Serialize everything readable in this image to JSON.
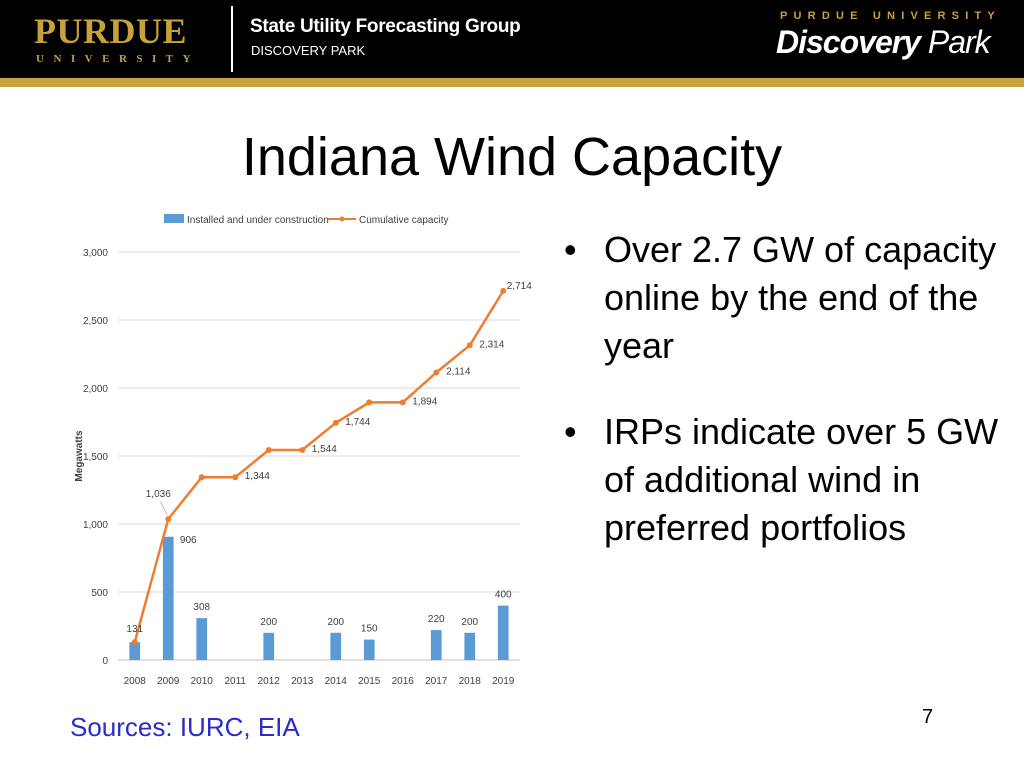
{
  "header": {
    "purdue_word": "PURDUE",
    "purdue_sub": "UNIVERSITY",
    "org_title": "State Utility Forecasting Group",
    "org_sub": "DISCOVERY PARK",
    "right_top": "PURDUE UNIVERSITY",
    "right_logo_a": "Discovery",
    "right_logo_b": " Park"
  },
  "colors": {
    "header_bg": "#000000",
    "gold": "#c9a13a",
    "bar": "#5b9bd5",
    "line": "#ed7d31",
    "sources": "#2b2bc9"
  },
  "title": "Indiana Wind Capacity",
  "bullets": [
    {
      "marker": "•",
      "text": "Over 2.7 GW of capacity online by the end of the year"
    },
    {
      "marker": "•",
      "text": "IRPs indicate over 5 GW of additional wind in preferred portfolios"
    }
  ],
  "footer": {
    "sources": "Sources: IURC, EIA",
    "page_number": "7"
  },
  "chart_data": {
    "type": "bar",
    "categories": [
      "2008",
      "2009",
      "2010",
      "2011",
      "2012",
      "2013",
      "2014",
      "2015",
      "2016",
      "2017",
      "2018",
      "2019"
    ],
    "series": [
      {
        "name": "Installed and under construction",
        "type": "bar",
        "values": [
          131,
          906,
          308,
          null,
          200,
          null,
          200,
          150,
          null,
          220,
          200,
          400
        ],
        "labels": [
          "131",
          "906",
          "308",
          "",
          "200",
          "",
          "200",
          "150",
          "",
          "220",
          "200",
          "400"
        ]
      },
      {
        "name": "Cumulative capacity",
        "type": "line",
        "values": [
          131,
          1036,
          1344,
          1344,
          1544,
          1544,
          1744,
          1894,
          1894,
          2114,
          2314,
          2714
        ],
        "labels": [
          "",
          "1,036",
          "",
          "1,344",
          "",
          "1,544",
          "1,744",
          "",
          "1,894",
          "2,114",
          "2,314",
          "2,714"
        ]
      }
    ],
    "ylabel": "Megawatts",
    "ylim": [
      0,
      3000
    ],
    "yticks": [
      0,
      500,
      1000,
      1500,
      2000,
      2500,
      3000
    ],
    "ytick_labels": [
      "0",
      "500",
      "1,000",
      "1,500",
      "2,000",
      "2,500",
      "3,000"
    ],
    "grid": true,
    "legend": "top"
  }
}
